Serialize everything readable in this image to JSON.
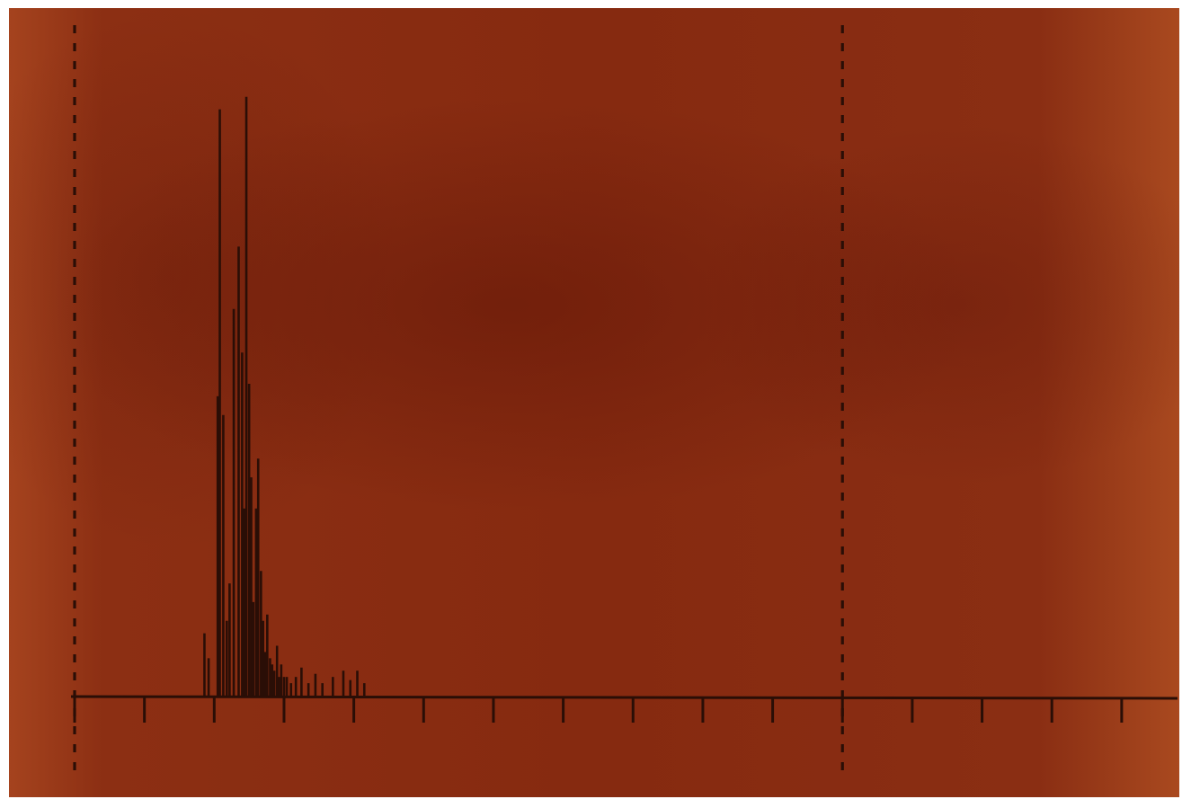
{
  "chart_data": {
    "type": "bar",
    "title": "",
    "xlabel": "",
    "ylabel": "",
    "grid": false,
    "reference_lines": {
      "x": [
        0,
        11
      ],
      "style": "dashed"
    },
    "xlim": [
      0,
      15.8
    ],
    "ylim": [
      0,
      1
    ],
    "x_ticks": [
      0,
      1,
      2,
      3,
      4,
      5,
      6,
      7,
      8,
      9,
      10,
      11,
      12,
      13,
      14,
      15
    ],
    "x": [
      1.86,
      1.92,
      2.05,
      2.08,
      2.13,
      2.18,
      2.22,
      2.28,
      2.35,
      2.4,
      2.43,
      2.46,
      2.5,
      2.53,
      2.56,
      2.6,
      2.63,
      2.67,
      2.7,
      2.73,
      2.76,
      2.8,
      2.83,
      2.86,
      2.9,
      2.93,
      2.96,
      3.0,
      3.04,
      3.1,
      3.17,
      3.25,
      3.35,
      3.45,
      3.55,
      3.7,
      3.85,
      3.95,
      4.05,
      4.15
    ],
    "values": [
      0.1,
      0.06,
      0.48,
      0.94,
      0.45,
      0.12,
      0.18,
      0.62,
      0.72,
      0.55,
      0.3,
      0.96,
      0.5,
      0.35,
      0.15,
      0.3,
      0.38,
      0.2,
      0.12,
      0.07,
      0.13,
      0.06,
      0.05,
      0.04,
      0.08,
      0.03,
      0.05,
      0.03,
      0.03,
      0.02,
      0.03,
      0.045,
      0.02,
      0.035,
      0.02,
      0.03,
      0.04,
      0.025,
      0.04,
      0.02
    ]
  }
}
